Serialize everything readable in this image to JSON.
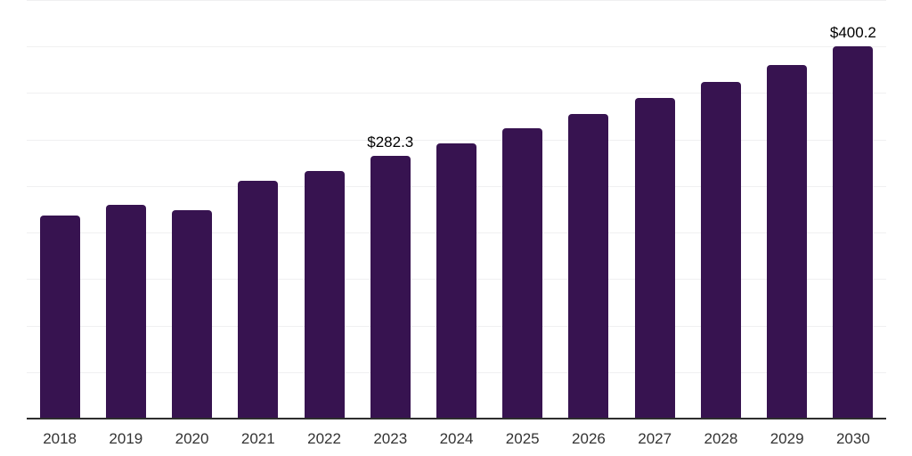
{
  "chart_data": {
    "type": "bar",
    "title": "",
    "xlabel": "",
    "ylabel": "",
    "categories": [
      "2018",
      "2019",
      "2020",
      "2021",
      "2022",
      "2023",
      "2024",
      "2025",
      "2026",
      "2027",
      "2028",
      "2029",
      "2030"
    ],
    "values": [
      218.6,
      229.8,
      224.0,
      255.4,
      266.4,
      282.3,
      295.8,
      312.1,
      327.1,
      344.7,
      362.2,
      380.4,
      400.2
    ],
    "data_labels": [
      "",
      "",
      "",
      "",
      "",
      "$282.3",
      "",
      "",
      "",
      "",
      "",
      "",
      "$400.2"
    ],
    "ylim": [
      0,
      450
    ],
    "gridline_step": 50,
    "grid": true,
    "y_axis_labels_visible": false,
    "legend": "none",
    "colors": {
      "bar": "#371350",
      "gridline": "#f0f0f1",
      "axis_line": "#2e2e2e",
      "tick_label": "#333333",
      "data_label": "#000000",
      "background": "#ffffff"
    }
  }
}
